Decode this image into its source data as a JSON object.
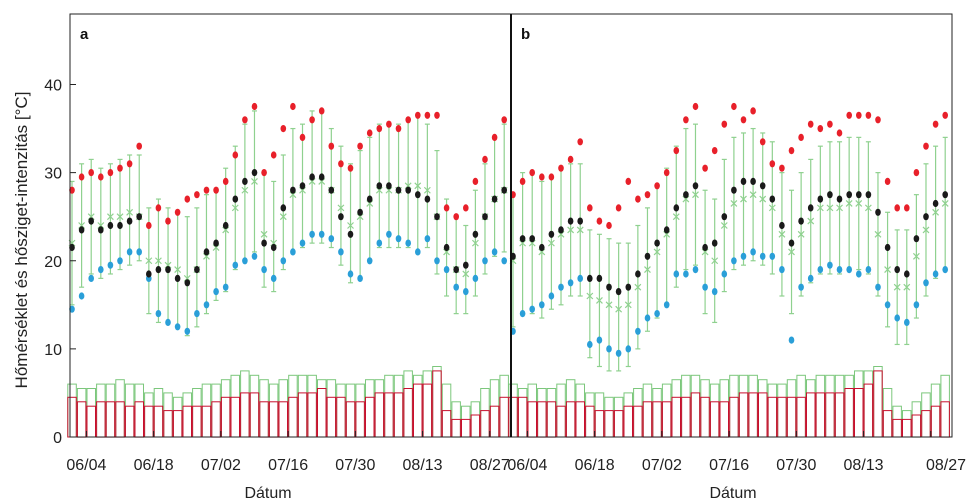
{
  "colors": {
    "max": "#e8202a",
    "mean": "#1a1a1a",
    "min": "#2a9fd8",
    "band": "#8fd18f",
    "uhi_green": "#7cc77c",
    "uhi_red": "#c8102e"
  },
  "chart_data": [
    {
      "type": "scatter",
      "panel_label": "a",
      "ylabel": "Hőmérséklet és hősziget-intenzitás [°C]",
      "xlabel": "Dátum",
      "x_tick_labels": [
        "06/04",
        "06/18",
        "07/02",
        "07/16",
        "07/30",
        "08/13",
        "08/27"
      ],
      "y_ticks": [
        0,
        10,
        20,
        30,
        40
      ],
      "ylim": [
        0,
        48
      ],
      "x_dates": [
        "06/01",
        "06/03",
        "06/05",
        "06/07",
        "06/09",
        "06/11",
        "06/13",
        "06/15",
        "06/17",
        "06/19",
        "06/21",
        "06/23",
        "06/25",
        "06/27",
        "06/29",
        "07/01",
        "07/03",
        "07/05",
        "07/07",
        "07/09",
        "07/11",
        "07/13",
        "07/15",
        "07/17",
        "07/19",
        "07/21",
        "07/23",
        "07/25",
        "07/27",
        "07/29",
        "07/31",
        "08/02",
        "08/04",
        "08/06",
        "08/08",
        "08/10",
        "08/12",
        "08/14",
        "08/16",
        "08/18",
        "08/20",
        "08/22",
        "08/24",
        "08/26",
        "08/28",
        "08/30"
      ],
      "series": [
        {
          "key": "max",
          "values": [
            28,
            29.5,
            30,
            29.5,
            30,
            30.5,
            31,
            33,
            24,
            26,
            24.5,
            25.5,
            27,
            27.5,
            28,
            28,
            29,
            32,
            36,
            37.5,
            30,
            32,
            35,
            37.5,
            34,
            36,
            37,
            33,
            31,
            30.5,
            33,
            34.5,
            35,
            35.5,
            35,
            36,
            36.5,
            36.5,
            36.5,
            26,
            25,
            26,
            29,
            31.5,
            34,
            36
          ]
        },
        {
          "key": "mean",
          "values": [
            21.5,
            23.5,
            24.5,
            23.5,
            24,
            24,
            24.5,
            25,
            18.5,
            19,
            19,
            18,
            17.5,
            19,
            21,
            22,
            24,
            27,
            29,
            30,
            22,
            21.5,
            26,
            28,
            28.5,
            29.5,
            29.5,
            28,
            25,
            23,
            25.5,
            27,
            28.5,
            28.5,
            28,
            28,
            27.5,
            27,
            25,
            21.5,
            19,
            19.5,
            23,
            25,
            27,
            28
          ]
        },
        {
          "key": "min",
          "values": [
            14.5,
            16,
            18,
            19,
            19.5,
            20,
            21,
            21,
            18,
            14,
            13,
            12.5,
            12,
            14,
            15,
            16.5,
            17,
            19.5,
            20,
            20.5,
            19,
            18,
            20,
            21,
            22,
            23,
            23,
            22.5,
            21,
            18.5,
            18,
            20,
            22,
            23,
            22.5,
            22,
            21,
            22.5,
            20,
            19,
            17,
            16.5,
            18,
            20,
            21,
            20
          ]
        },
        {
          "key": "band_mean",
          "values": [
            22,
            24,
            25,
            24,
            25,
            25,
            25.5,
            25,
            20,
            20,
            19.5,
            19,
            18,
            19,
            20.5,
            21.5,
            23.5,
            26,
            28,
            29,
            23,
            22,
            25,
            27.5,
            28,
            29,
            29,
            28,
            26,
            24,
            25,
            26.5,
            28,
            28,
            28,
            28.5,
            28.5,
            28,
            25,
            21,
            19,
            18.5,
            22,
            25,
            27,
            28
          ]
        },
        {
          "key": "band_lo",
          "values": [
            15,
            17,
            18.5,
            18,
            18.5,
            19,
            19.5,
            20,
            14,
            13,
            13,
            12.5,
            11.5,
            12.5,
            14,
            15.5,
            16.5,
            19,
            20,
            21,
            17,
            16.5,
            19,
            21,
            21.5,
            22,
            22,
            21.5,
            19.5,
            17.5,
            18,
            20,
            21.5,
            21.5,
            21.5,
            21.5,
            21,
            21.5,
            18.5,
            16,
            14,
            14,
            16,
            18.5,
            20.5,
            21
          ]
        },
        {
          "key": "band_hi",
          "values": [
            29,
            31,
            31.5,
            30.5,
            31,
            31.5,
            32,
            32,
            26,
            27,
            26,
            25.5,
            25,
            26,
            27.5,
            28,
            30.5,
            33,
            35.5,
            37,
            30,
            29,
            32,
            35,
            35.5,
            37,
            37,
            35,
            33,
            31,
            32.5,
            34,
            35.5,
            35.5,
            35.5,
            36,
            36.5,
            35.5,
            32.5,
            27,
            25,
            24,
            28,
            31,
            34,
            35.5
          ]
        },
        {
          "key": "uhi_green",
          "values": [
            6,
            5.5,
            5.5,
            6,
            6,
            6.5,
            6,
            6,
            5,
            5.5,
            5,
            4.5,
            5,
            5.5,
            6,
            6,
            6.5,
            7,
            7.5,
            7,
            6.5,
            6,
            6.5,
            7,
            7,
            7,
            6.5,
            6.5,
            6,
            6,
            6,
            6.5,
            6.5,
            7,
            7,
            7.5,
            7,
            7.5,
            8,
            6,
            4,
            3.5,
            4,
            5.5,
            6.5,
            7
          ]
        },
        {
          "key": "uhi_red",
          "values": [
            4.5,
            4,
            3.5,
            4,
            4,
            4,
            3.5,
            4,
            3.5,
            3.5,
            3,
            3,
            3.5,
            3.5,
            3.5,
            4,
            4.5,
            4.5,
            5,
            5,
            4,
            4,
            4,
            4.5,
            5,
            5,
            5.5,
            4.5,
            4.5,
            4,
            4,
            4.5,
            5,
            5,
            5,
            5.5,
            6,
            6,
            7.5,
            3,
            2,
            2,
            2.5,
            3,
            3.5,
            4.5
          ]
        }
      ]
    },
    {
      "type": "scatter",
      "panel_label": "b",
      "xlabel": "Dátum",
      "x_tick_labels": [
        "06/04",
        "06/18",
        "07/02",
        "07/16",
        "07/30",
        "08/13",
        "08/27"
      ],
      "y_ticks": [
        0,
        10,
        20,
        30,
        40
      ],
      "ylim": [
        0,
        48
      ],
      "x_dates": [
        "06/01",
        "06/03",
        "06/05",
        "06/07",
        "06/09",
        "06/11",
        "06/13",
        "06/15",
        "06/17",
        "06/19",
        "06/21",
        "06/23",
        "06/25",
        "06/27",
        "06/29",
        "07/01",
        "07/03",
        "07/05",
        "07/07",
        "07/09",
        "07/11",
        "07/13",
        "07/15",
        "07/17",
        "07/19",
        "07/21",
        "07/23",
        "07/25",
        "07/27",
        "07/29",
        "07/31",
        "08/02",
        "08/04",
        "08/06",
        "08/08",
        "08/10",
        "08/12",
        "08/14",
        "08/16",
        "08/18",
        "08/20",
        "08/22",
        "08/24",
        "08/26",
        "08/28",
        "08/30"
      ],
      "series": [
        {
          "key": "max",
          "values": [
            27.5,
            29,
            30,
            29.5,
            29.5,
            30.5,
            31.5,
            33.5,
            26,
            24.5,
            24,
            26,
            29,
            27,
            27.5,
            28.5,
            30,
            32.5,
            36,
            37.5,
            30.5,
            32.5,
            35.5,
            37.5,
            36,
            37,
            33.5,
            31,
            30.5,
            32.5,
            34,
            35.5,
            35,
            35.5,
            34.5,
            36.5,
            36.5,
            36.5,
            36,
            29,
            26,
            26,
            30,
            33,
            35.5,
            36.5
          ]
        },
        {
          "key": "mean",
          "values": [
            20.5,
            22.5,
            22.5,
            21.5,
            23,
            23.5,
            24.5,
            24.5,
            18,
            18,
            17,
            16.5,
            17,
            18.5,
            20.5,
            22,
            23.5,
            26,
            27.5,
            28.5,
            21.5,
            22,
            25,
            28,
            29,
            29,
            28.5,
            27,
            24,
            22,
            24.5,
            26,
            27,
            27.5,
            27,
            27.5,
            27.5,
            27.5,
            25.5,
            21.5,
            19,
            18.5,
            22.5,
            25,
            26.5,
            27.5
          ]
        },
        {
          "key": "min",
          "values": [
            12,
            14,
            14.5,
            15,
            16,
            17,
            17.5,
            18,
            10.5,
            11,
            10,
            9.5,
            10,
            12,
            13.5,
            14,
            15,
            18.5,
            18.5,
            19,
            17,
            16.5,
            18.5,
            20,
            20.5,
            21,
            20.5,
            20.5,
            19,
            11,
            17,
            18,
            19,
            19.5,
            19,
            19,
            18.5,
            19,
            17,
            15,
            13.5,
            13,
            15,
            17.5,
            18.5,
            19
          ]
        },
        {
          "key": "band_mean",
          "values": [
            20,
            22,
            22,
            21,
            22,
            23,
            23.5,
            23.5,
            16,
            15.5,
            15,
            14.5,
            15,
            17,
            19,
            21,
            23,
            25,
            27,
            27.5,
            21,
            20,
            24,
            26.5,
            27,
            27.5,
            27,
            26,
            23,
            21,
            23,
            24.5,
            26,
            26,
            26,
            26.5,
            26.5,
            26,
            23,
            19,
            17,
            17,
            20.5,
            23.5,
            25.5,
            26.5
          ]
        },
        {
          "key": "band_lo",
          "values": [
            12.5,
            14,
            14,
            13.5,
            14.5,
            15,
            16,
            16,
            9,
            8,
            7.5,
            7.5,
            8,
            10,
            12,
            13.5,
            15,
            17,
            19,
            19.5,
            14,
            13,
            16.5,
            19,
            19.5,
            20,
            19.5,
            18.5,
            16,
            14,
            16,
            17.5,
            18.5,
            18.5,
            18.5,
            19,
            19,
            18.5,
            16,
            12.5,
            10.5,
            10.5,
            13.5,
            16,
            18,
            19
          ]
        },
        {
          "key": "band_hi",
          "values": [
            27.5,
            30,
            30,
            29,
            29.5,
            30.5,
            31,
            31,
            23.5,
            23,
            22.5,
            22,
            22,
            24,
            26,
            28.5,
            30.5,
            33,
            35,
            35.5,
            28,
            27,
            31.5,
            34,
            34.5,
            35,
            34.5,
            33.5,
            30,
            28,
            30,
            31.5,
            33,
            33.5,
            33.5,
            34,
            34,
            33.5,
            30,
            25.5,
            23.5,
            23.5,
            27.5,
            31,
            33,
            34
          ]
        },
        {
          "key": "uhi_green",
          "values": [
            6,
            5.5,
            6,
            5.5,
            5.5,
            6,
            6.5,
            6,
            5,
            5,
            4.5,
            4.5,
            5,
            5.5,
            6,
            5.5,
            6,
            6.5,
            7,
            7,
            6.5,
            6,
            6.5,
            7,
            7,
            7,
            6.5,
            6,
            6,
            6.5,
            7,
            6.5,
            7,
            7,
            7,
            7,
            7.5,
            7.5,
            8,
            5.5,
            3.5,
            3,
            4,
            5,
            6,
            7
          ]
        },
        {
          "key": "uhi_red",
          "values": [
            4.5,
            4.5,
            4,
            4,
            4,
            3.5,
            4,
            4,
            3.5,
            3,
            3,
            3,
            3.5,
            3.5,
            4,
            4,
            4,
            4.5,
            4.5,
            5,
            4.5,
            4,
            4,
            4.5,
            5,
            5,
            5,
            4.5,
            4.5,
            4.5,
            4.5,
            5,
            5,
            5,
            5,
            5.5,
            5.5,
            6,
            7.5,
            3,
            2,
            2,
            2.5,
            3,
            3.5,
            4
          ]
        }
      ]
    }
  ]
}
